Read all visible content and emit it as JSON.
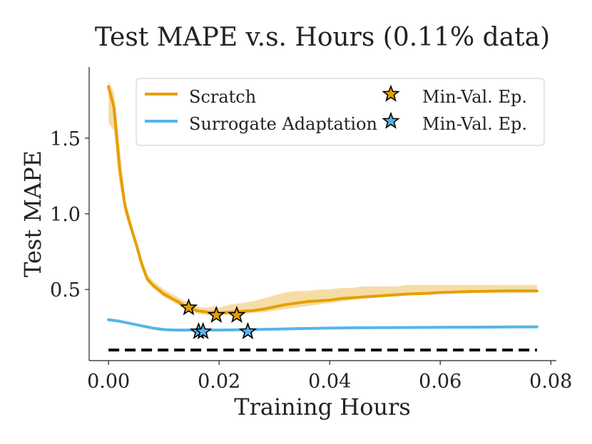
{
  "chart_data": {
    "type": "line",
    "title": "Test MAPE v.s. Hours (0.11% data)",
    "xlabel": "Training Hours",
    "ylabel": "Test MAPE",
    "xlim": [
      -0.0035,
      0.081
    ],
    "ylim": [
      0.03,
      1.97
    ],
    "xticks": [
      0.0,
      0.02,
      0.04,
      0.06,
      0.08
    ],
    "xtick_labels": [
      "0.00",
      "0.02",
      "0.04",
      "0.06",
      "0.08"
    ],
    "yticks": [
      0.5,
      1.0,
      1.5
    ],
    "ytick_labels": [
      "0.5",
      "1.0",
      "1.5"
    ],
    "legend_location": "top",
    "series": [
      {
        "name": "Scratch",
        "color": "#E69F00",
        "x": [
          0.0,
          0.001,
          0.002,
          0.003,
          0.004,
          0.005,
          0.006,
          0.007,
          0.008,
          0.009,
          0.01,
          0.011,
          0.012,
          0.013,
          0.014,
          0.015,
          0.016,
          0.017,
          0.018,
          0.019,
          0.02,
          0.022,
          0.024,
          0.026,
          0.028,
          0.03,
          0.032,
          0.034,
          0.036,
          0.038,
          0.04,
          0.042,
          0.044,
          0.046,
          0.048,
          0.05,
          0.052,
          0.054,
          0.056,
          0.058,
          0.06,
          0.062,
          0.064,
          0.066,
          0.068,
          0.07,
          0.072,
          0.074,
          0.076,
          0.0775
        ],
        "y": [
          1.84,
          1.7,
          1.3,
          1.05,
          0.92,
          0.8,
          0.67,
          0.57,
          0.53,
          0.5,
          0.47,
          0.45,
          0.43,
          0.41,
          0.39,
          0.375,
          0.36,
          0.355,
          0.35,
          0.348,
          0.345,
          0.35,
          0.355,
          0.36,
          0.37,
          0.385,
          0.4,
          0.41,
          0.42,
          0.425,
          0.43,
          0.44,
          0.445,
          0.45,
          0.455,
          0.46,
          0.465,
          0.47,
          0.472,
          0.475,
          0.48,
          0.482,
          0.485,
          0.487,
          0.488,
          0.489,
          0.49,
          0.49,
          0.49,
          0.49
        ],
        "band_upper": [
          1.88,
          1.8,
          1.45,
          1.1,
          0.95,
          0.83,
          0.7,
          0.6,
          0.56,
          0.53,
          0.5,
          0.48,
          0.46,
          0.44,
          0.42,
          0.4,
          0.39,
          0.38,
          0.38,
          0.39,
          0.38,
          0.4,
          0.41,
          0.42,
          0.44,
          0.46,
          0.48,
          0.49,
          0.49,
          0.5,
          0.5,
          0.51,
          0.51,
          0.52,
          0.52,
          0.52,
          0.52,
          0.53,
          0.53,
          0.53,
          0.53,
          0.53,
          0.53,
          0.53,
          0.53,
          0.53,
          0.53,
          0.53,
          0.53,
          0.53
        ],
        "band_lower": [
          1.6,
          1.55,
          1.2,
          1.0,
          0.88,
          0.77,
          0.64,
          0.55,
          0.51,
          0.48,
          0.45,
          0.43,
          0.41,
          0.39,
          0.37,
          0.35,
          0.34,
          0.335,
          0.33,
          0.33,
          0.33,
          0.33,
          0.34,
          0.345,
          0.35,
          0.36,
          0.37,
          0.38,
          0.39,
          0.4,
          0.41,
          0.42,
          0.43,
          0.44,
          0.445,
          0.45,
          0.455,
          0.46,
          0.465,
          0.47,
          0.47,
          0.475,
          0.48,
          0.48,
          0.48,
          0.48,
          0.48,
          0.48,
          0.48,
          0.48
        ],
        "min_val_epochs": [
          [
            0.0145,
            0.38
          ],
          [
            0.0195,
            0.33
          ],
          [
            0.0232,
            0.33
          ]
        ]
      },
      {
        "name": "Surrogate Adaptation",
        "color": "#56B4E9",
        "x": [
          0.0,
          0.002,
          0.004,
          0.006,
          0.008,
          0.01,
          0.012,
          0.014,
          0.016,
          0.018,
          0.02,
          0.025,
          0.03,
          0.035,
          0.04,
          0.045,
          0.05,
          0.055,
          0.06,
          0.065,
          0.07,
          0.075,
          0.0775
        ],
        "y": [
          0.3,
          0.29,
          0.275,
          0.26,
          0.245,
          0.235,
          0.232,
          0.232,
          0.232,
          0.232,
          0.232,
          0.234,
          0.238,
          0.242,
          0.245,
          0.247,
          0.248,
          0.249,
          0.25,
          0.251,
          0.252,
          0.253,
          0.253
        ],
        "min_val_epochs": [
          [
            0.0163,
            0.222
          ],
          [
            0.0171,
            0.222
          ],
          [
            0.0252,
            0.222
          ]
        ]
      }
    ],
    "reference_line": {
      "y": 0.1,
      "style": "dashed",
      "color": "#000000"
    },
    "legend": [
      {
        "label": "Scratch",
        "kind": "line",
        "color": "#E69F00"
      },
      {
        "label": "Min-Val. Ep.",
        "kind": "star",
        "color": "#E69F00"
      },
      {
        "label": "Surrogate Adaptation",
        "kind": "line",
        "color": "#56B4E9"
      },
      {
        "label": "Min-Val. Ep.",
        "kind": "star",
        "color": "#56B4E9"
      }
    ]
  }
}
